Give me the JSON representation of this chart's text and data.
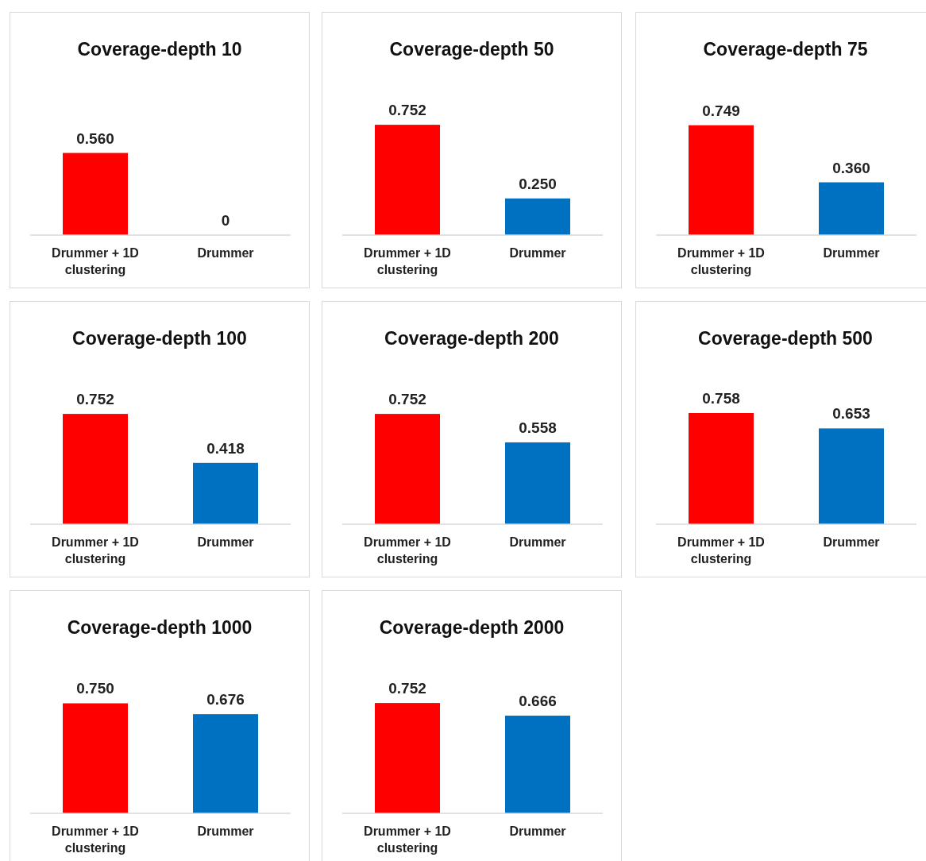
{
  "chart_data": [
    {
      "type": "bar",
      "title": "Coverage-depth 10",
      "categories": [
        "Drummer + 1D clustering",
        "Drummer"
      ],
      "values": [
        0.56,
        0
      ],
      "colors": [
        "#ff0000",
        "#0070c0"
      ],
      "value_labels": [
        "0.560",
        "0"
      ]
    },
    {
      "type": "bar",
      "title": "Coverage-depth 50",
      "categories": [
        "Drummer + 1D clustering",
        "Drummer"
      ],
      "values": [
        0.752,
        0.25
      ],
      "colors": [
        "#ff0000",
        "#0070c0"
      ],
      "value_labels": [
        "0.752",
        "0.250"
      ]
    },
    {
      "type": "bar",
      "title": "Coverage-depth 75",
      "categories": [
        "Drummer + 1D clustering",
        "Drummer"
      ],
      "values": [
        0.749,
        0.36
      ],
      "colors": [
        "#ff0000",
        "#0070c0"
      ],
      "value_labels": [
        "0.749",
        "0.360"
      ]
    },
    {
      "type": "bar",
      "title": "Coverage-depth 100",
      "categories": [
        "Drummer + 1D clustering",
        "Drummer"
      ],
      "values": [
        0.752,
        0.418
      ],
      "colors": [
        "#ff0000",
        "#0070c0"
      ],
      "value_labels": [
        "0.752",
        "0.418"
      ]
    },
    {
      "type": "bar",
      "title": "Coverage-depth 200",
      "categories": [
        "Drummer + 1D clustering",
        "Drummer"
      ],
      "values": [
        0.752,
        0.558
      ],
      "colors": [
        "#ff0000",
        "#0070c0"
      ],
      "value_labels": [
        "0.752",
        "0.558"
      ]
    },
    {
      "type": "bar",
      "title": "Coverage-depth 500",
      "categories": [
        "Drummer + 1D clustering",
        "Drummer"
      ],
      "values": [
        0.758,
        0.653
      ],
      "colors": [
        "#ff0000",
        "#0070c0"
      ],
      "value_labels": [
        "0.758",
        "0.653"
      ]
    },
    {
      "type": "bar",
      "title": "Coverage-depth 1000",
      "categories": [
        "Drummer + 1D clustering",
        "Drummer"
      ],
      "values": [
        0.75,
        0.676
      ],
      "colors": [
        "#ff0000",
        "#0070c0"
      ],
      "value_labels": [
        "0.750",
        "0.676"
      ]
    },
    {
      "type": "bar",
      "title": "Coverage-depth 2000",
      "categories": [
        "Drummer + 1D clustering",
        "Drummer"
      ],
      "values": [
        0.752,
        0.666
      ],
      "colors": [
        "#ff0000",
        "#0070c0"
      ],
      "value_labels": [
        "0.752",
        "0.666"
      ]
    }
  ]
}
